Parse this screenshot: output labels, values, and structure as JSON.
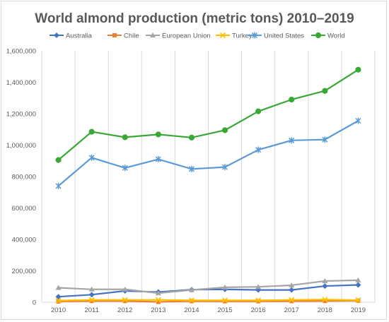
{
  "chart_data": {
    "type": "line",
    "title": "World almond production (metric tons) 2010–2019",
    "xlabel": "",
    "ylabel": "",
    "x": [
      "2010",
      "2011",
      "2012",
      "2013",
      "2014",
      "2015",
      "2016",
      "2017",
      "2018",
      "2019"
    ],
    "y_ticks": [
      "0",
      "200,000",
      "400,000",
      "600,000",
      "800,000",
      "1,000,000",
      "1,200,000",
      "1,400,000",
      "1,600,000"
    ],
    "ylim": [
      0,
      1600000
    ],
    "grid": "vertical",
    "legend_position": "top",
    "series": [
      {
        "name": "Australia",
        "color": "#4472c4",
        "marker": "diamond",
        "values": [
          35000,
          48000,
          72000,
          65000,
          80000,
          82000,
          78000,
          78000,
          103000,
          110000
        ]
      },
      {
        "name": "Chile",
        "color": "#ed7d31",
        "marker": "square",
        "values": [
          5000,
          8000,
          8000,
          2000,
          7000,
          6000,
          6000,
          7000,
          8000,
          10000
        ]
      },
      {
        "name": "European Union",
        "color": "#a5a5a5",
        "marker": "triangle",
        "values": [
          92000,
          82000,
          82000,
          58000,
          78000,
          95000,
          98000,
          108000,
          135000,
          140000
        ]
      },
      {
        "name": "Turkey",
        "color": "#ffc000",
        "marker": "x",
        "values": [
          10000,
          15000,
          15000,
          15000,
          12000,
          12000,
          12000,
          15000,
          17000,
          13000
        ]
      },
      {
        "name": "United States",
        "color": "#5b9bd5",
        "marker": "star",
        "values": [
          740000,
          920000,
          855000,
          910000,
          848000,
          860000,
          970000,
          1030000,
          1035000,
          1155000
        ]
      },
      {
        "name": "World",
        "color": "#3aa836",
        "marker": "circle",
        "values": [
          905000,
          1085000,
          1050000,
          1068000,
          1048000,
          1095000,
          1215000,
          1290000,
          1345000,
          1480000
        ]
      }
    ]
  }
}
